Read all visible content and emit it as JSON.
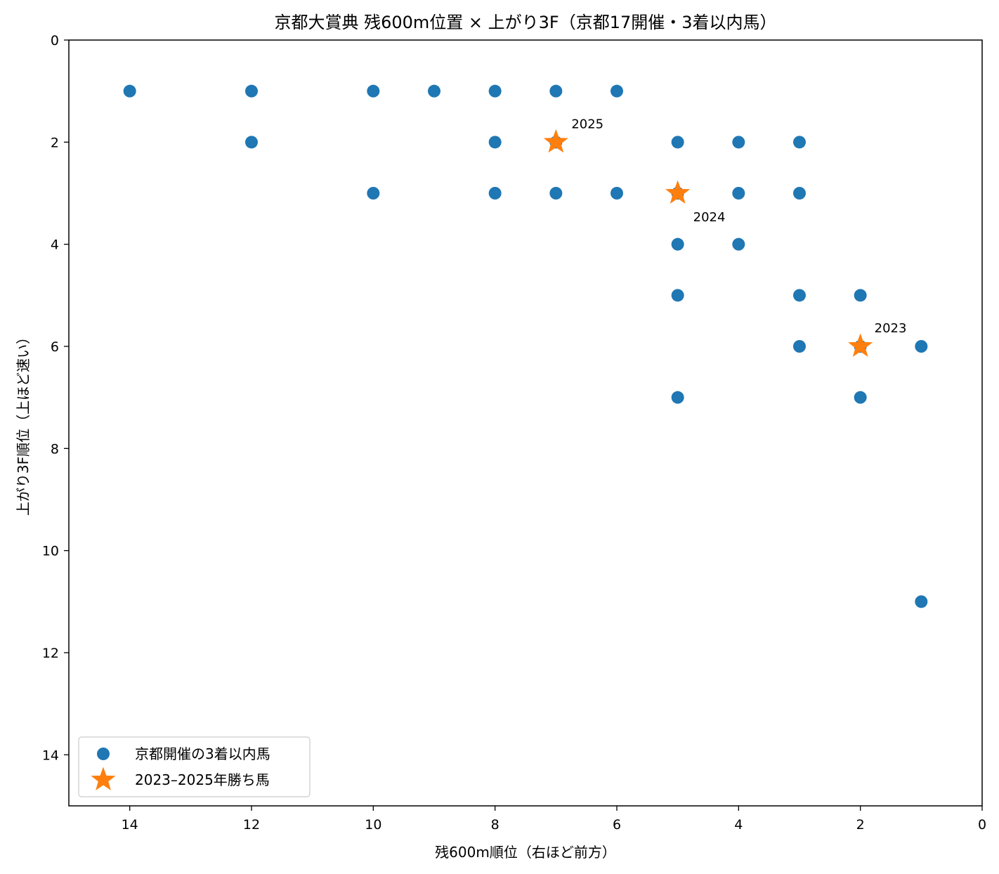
{
  "chart_data": {
    "type": "scatter",
    "title": "京都大賞典 残600m位置 × 上がり3F（京都17開催・3着以内馬）",
    "xlabel": "残600m順位（右ほど前方）",
    "ylabel": "上がり3F順位（上ほど速い）",
    "xlim": [
      15,
      0
    ],
    "ylim": [
      15,
      0
    ],
    "x_inverted": true,
    "y_inverted": true,
    "xticks": [
      14,
      12,
      10,
      8,
      6,
      4,
      2,
      0
    ],
    "yticks": [
      0,
      2,
      4,
      6,
      8,
      10,
      12,
      14
    ],
    "grid": false,
    "legend_position": "lower-left",
    "series": [
      {
        "name": "京都開催の3着以内馬",
        "marker": "circle",
        "color": "#1f77b4",
        "points": [
          {
            "x": 14,
            "y": 1
          },
          {
            "x": 12,
            "y": 1
          },
          {
            "x": 10,
            "y": 1
          },
          {
            "x": 9,
            "y": 1
          },
          {
            "x": 8,
            "y": 1
          },
          {
            "x": 7,
            "y": 1
          },
          {
            "x": 6,
            "y": 1
          },
          {
            "x": 12,
            "y": 2
          },
          {
            "x": 8,
            "y": 2
          },
          {
            "x": 7,
            "y": 2
          },
          {
            "x": 5,
            "y": 2
          },
          {
            "x": 4,
            "y": 2
          },
          {
            "x": 3,
            "y": 2
          },
          {
            "x": 10,
            "y": 3
          },
          {
            "x": 8,
            "y": 3
          },
          {
            "x": 7,
            "y": 3
          },
          {
            "x": 6,
            "y": 3
          },
          {
            "x": 5,
            "y": 3
          },
          {
            "x": 4,
            "y": 3
          },
          {
            "x": 3,
            "y": 3
          },
          {
            "x": 5,
            "y": 4
          },
          {
            "x": 4,
            "y": 4
          },
          {
            "x": 5,
            "y": 5
          },
          {
            "x": 3,
            "y": 5
          },
          {
            "x": 2,
            "y": 5
          },
          {
            "x": 3,
            "y": 6
          },
          {
            "x": 2,
            "y": 6
          },
          {
            "x": 1,
            "y": 6
          },
          {
            "x": 5,
            "y": 7
          },
          {
            "x": 2,
            "y": 7
          },
          {
            "x": 1,
            "y": 11
          }
        ]
      },
      {
        "name": "2023–2025年勝ち馬",
        "marker": "star",
        "color": "#ff7f0e",
        "points": [
          {
            "x": 7,
            "y": 2,
            "label": "2025"
          },
          {
            "x": 5,
            "y": 3,
            "label": "2024"
          },
          {
            "x": 2,
            "y": 6,
            "label": "2023"
          }
        ]
      }
    ]
  }
}
